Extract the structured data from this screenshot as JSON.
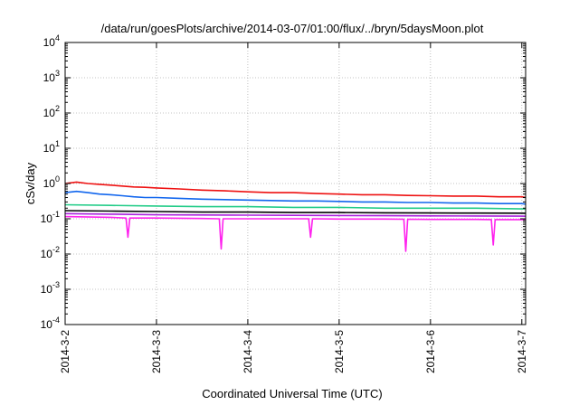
{
  "chart_data": {
    "type": "line",
    "title": "/data/run/goesPlots/archive/2014-03-07/01:00/flux/../bryn/5daysMoon.plot",
    "xlabel": "Coordinated Universal Time (UTC)",
    "ylabel": "cSv/day",
    "yscale": "log",
    "ylim": [
      0.0001,
      10000
    ],
    "y_ticks": [
      {
        "value": 0.0001,
        "base": "10",
        "exp": "-4"
      },
      {
        "value": 0.001,
        "base": "10",
        "exp": "-3"
      },
      {
        "value": 0.01,
        "base": "10",
        "exp": "-2"
      },
      {
        "value": 0.1,
        "base": "10",
        "exp": "-1"
      },
      {
        "value": 1,
        "base": "10",
        "exp": "0"
      },
      {
        "value": 10,
        "base": "10",
        "exp": "1"
      },
      {
        "value": 100,
        "base": "10",
        "exp": "2"
      },
      {
        "value": 1000,
        "base": "10",
        "exp": "3"
      },
      {
        "value": 10000,
        "base": "10",
        "exp": "4"
      }
    ],
    "xlim": [
      "2014-03-02",
      "2014-03-07 01:00"
    ],
    "x_ticks": [
      {
        "value": "2014-03-02",
        "label": "2014-3-2"
      },
      {
        "value": "2014-03-03",
        "label": "2014-3-3"
      },
      {
        "value": "2014-03-04",
        "label": "2014-3-4"
      },
      {
        "value": "2014-03-05",
        "label": "2014-3-5"
      },
      {
        "value": "2014-03-06",
        "label": "2014-3-6"
      },
      {
        "value": "2014-03-07",
        "label": "2014-3-7"
      }
    ],
    "grid": true,
    "legend": "none",
    "series": [
      {
        "color": "#ee1111",
        "points": [
          [
            "2014-03-02 00:00",
            1.0
          ],
          [
            "2014-03-02 03:00",
            1.1
          ],
          [
            "2014-03-02 06:00",
            1.0
          ],
          [
            "2014-03-02 09:00",
            0.95
          ],
          [
            "2014-03-02 12:00",
            0.9
          ],
          [
            "2014-03-02 15:00",
            0.85
          ],
          [
            "2014-03-02 18:00",
            0.8
          ],
          [
            "2014-03-02 21:00",
            0.78
          ],
          [
            "2014-03-03 00:00",
            0.75
          ],
          [
            "2014-03-03 06:00",
            0.7
          ],
          [
            "2014-03-03 12:00",
            0.65
          ],
          [
            "2014-03-03 18:00",
            0.62
          ],
          [
            "2014-03-04 00:00",
            0.58
          ],
          [
            "2014-03-04 06:00",
            0.55
          ],
          [
            "2014-03-04 12:00",
            0.55
          ],
          [
            "2014-03-04 18:00",
            0.52
          ],
          [
            "2014-03-05 00:00",
            0.5
          ],
          [
            "2014-03-05 06:00",
            0.48
          ],
          [
            "2014-03-05 12:00",
            0.48
          ],
          [
            "2014-03-05 18:00",
            0.46
          ],
          [
            "2014-03-06 00:00",
            0.45
          ],
          [
            "2014-03-06 06:00",
            0.44
          ],
          [
            "2014-03-06 12:00",
            0.44
          ],
          [
            "2014-03-06 18:00",
            0.42
          ],
          [
            "2014-03-07 00:00",
            0.42
          ],
          [
            "2014-03-07 01:00",
            0.4
          ]
        ]
      },
      {
        "color": "#1166ee",
        "points": [
          [
            "2014-03-02 00:00",
            0.55
          ],
          [
            "2014-03-02 03:00",
            0.6
          ],
          [
            "2014-03-02 06:00",
            0.55
          ],
          [
            "2014-03-02 09:00",
            0.5
          ],
          [
            "2014-03-02 12:00",
            0.48
          ],
          [
            "2014-03-02 15:00",
            0.45
          ],
          [
            "2014-03-02 18:00",
            0.42
          ],
          [
            "2014-03-02 21:00",
            0.4
          ],
          [
            "2014-03-03 00:00",
            0.4
          ],
          [
            "2014-03-03 06:00",
            0.38
          ],
          [
            "2014-03-03 12:00",
            0.36
          ],
          [
            "2014-03-03 18:00",
            0.35
          ],
          [
            "2014-03-04 00:00",
            0.34
          ],
          [
            "2014-03-04 06:00",
            0.33
          ],
          [
            "2014-03-04 12:00",
            0.32
          ],
          [
            "2014-03-04 18:00",
            0.32
          ],
          [
            "2014-03-05 00:00",
            0.31
          ],
          [
            "2014-03-05 06:00",
            0.3
          ],
          [
            "2014-03-05 12:00",
            0.3
          ],
          [
            "2014-03-05 18:00",
            0.29
          ],
          [
            "2014-03-06 00:00",
            0.29
          ],
          [
            "2014-03-06 06:00",
            0.28
          ],
          [
            "2014-03-06 12:00",
            0.28
          ],
          [
            "2014-03-06 18:00",
            0.27
          ],
          [
            "2014-03-07 00:00",
            0.27
          ],
          [
            "2014-03-07 01:00",
            0.26
          ]
        ]
      },
      {
        "color": "#22cc88",
        "points": [
          [
            "2014-03-02 00:00",
            0.25
          ],
          [
            "2014-03-02 12:00",
            0.24
          ],
          [
            "2014-03-03 00:00",
            0.23
          ],
          [
            "2014-03-03 12:00",
            0.22
          ],
          [
            "2014-03-04 00:00",
            0.22
          ],
          [
            "2014-03-04 12:00",
            0.21
          ],
          [
            "2014-03-05 00:00",
            0.21
          ],
          [
            "2014-03-05 12:00",
            0.2
          ],
          [
            "2014-03-06 00:00",
            0.2
          ],
          [
            "2014-03-06 12:00",
            0.2
          ],
          [
            "2014-03-07 00:00",
            0.19
          ],
          [
            "2014-03-07 01:00",
            0.19
          ]
        ]
      },
      {
        "color": "#000000",
        "points": [
          [
            "2014-03-02 00:00",
            0.17
          ],
          [
            "2014-03-02 12:00",
            0.165
          ],
          [
            "2014-03-03 00:00",
            0.16
          ],
          [
            "2014-03-03 12:00",
            0.155
          ],
          [
            "2014-03-04 00:00",
            0.155
          ],
          [
            "2014-03-04 12:00",
            0.15
          ],
          [
            "2014-03-05 00:00",
            0.15
          ],
          [
            "2014-03-05 12:00",
            0.148
          ],
          [
            "2014-03-06 00:00",
            0.146
          ],
          [
            "2014-03-06 12:00",
            0.145
          ],
          [
            "2014-03-07 00:00",
            0.144
          ],
          [
            "2014-03-07 01:00",
            0.143
          ]
        ]
      },
      {
        "color": "#aa22dd",
        "points": [
          [
            "2014-03-02 00:00",
            0.14
          ],
          [
            "2014-03-02 12:00",
            0.135
          ],
          [
            "2014-03-03 00:00",
            0.13
          ],
          [
            "2014-03-03 12:00",
            0.128
          ],
          [
            "2014-03-04 00:00",
            0.127
          ],
          [
            "2014-03-04 12:00",
            0.125
          ],
          [
            "2014-03-05 00:00",
            0.124
          ],
          [
            "2014-03-05 12:00",
            0.122
          ],
          [
            "2014-03-06 00:00",
            0.121
          ],
          [
            "2014-03-06 12:00",
            0.12
          ],
          [
            "2014-03-07 00:00",
            0.119
          ],
          [
            "2014-03-07 01:00",
            0.118
          ]
        ]
      },
      {
        "color": "#ff22ee",
        "points": [
          [
            "2014-03-02 00:00",
            0.115
          ],
          [
            "2014-03-02 12:00",
            0.11
          ],
          [
            "2014-03-02 16:00",
            0.105
          ],
          [
            "2014-03-02 16:30",
            0.03
          ],
          [
            "2014-03-02 17:00",
            0.105
          ],
          [
            "2014-03-03 00:00",
            0.105
          ],
          [
            "2014-03-03 12:00",
            0.102
          ],
          [
            "2014-03-03 16:30",
            0.1
          ],
          [
            "2014-03-03 17:00",
            0.014
          ],
          [
            "2014-03-03 17:30",
            0.1
          ],
          [
            "2014-03-04 00:00",
            0.1
          ],
          [
            "2014-03-04 12:00",
            0.1
          ],
          [
            "2014-03-04 16:00",
            0.1
          ],
          [
            "2014-03-04 16:30",
            0.03
          ],
          [
            "2014-03-04 17:00",
            0.1
          ],
          [
            "2014-03-05 00:00",
            0.098
          ],
          [
            "2014-03-05 12:00",
            0.098
          ],
          [
            "2014-03-05 17:00",
            0.097
          ],
          [
            "2014-03-05 17:30",
            0.012
          ],
          [
            "2014-03-05 18:00",
            0.097
          ],
          [
            "2014-03-06 00:00",
            0.096
          ],
          [
            "2014-03-06 12:00",
            0.096
          ],
          [
            "2014-03-06 16:00",
            0.095
          ],
          [
            "2014-03-06 16:30",
            0.018
          ],
          [
            "2014-03-06 17:00",
            0.095
          ],
          [
            "2014-03-07 00:00",
            0.095
          ],
          [
            "2014-03-07 01:00",
            0.094
          ]
        ]
      }
    ]
  }
}
